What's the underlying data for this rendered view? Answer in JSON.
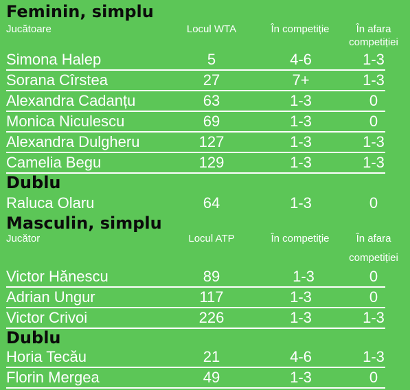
{
  "sections": {
    "women_single": "Feminin, simplu",
    "women_double": "Dublu",
    "men_single": "Masculin, simplu",
    "men_double": "Dublu"
  },
  "headers_women": {
    "player": "Jucătoare",
    "rank": "Locul WTA",
    "in_competition": "În competiție",
    "out_competition_1": "În afara",
    "out_competition_2": "competiției"
  },
  "headers_men": {
    "player": "Jucător",
    "rank": "Locul ATP",
    "in_competition": "În competiție",
    "out_competition_1": "În afara",
    "out_competition_2": "competiției"
  },
  "women_single_rows": [
    {
      "name": "Simona Halep",
      "rank": "5",
      "in": "4-6",
      "out": "1-3"
    },
    {
      "name": "Sorana Cîrstea",
      "rank": "27",
      "in": "7+",
      "out": "1-3"
    },
    {
      "name": "Alexandra Cadanțu",
      "rank": "63",
      "in": "1-3",
      "out": "0"
    },
    {
      "name": "Monica Niculescu",
      "rank": "69",
      "in": "1-3",
      "out": "0"
    },
    {
      "name": "Alexandra Dulgheru",
      "rank": "127",
      "in": "1-3",
      "out": "1-3"
    },
    {
      "name": "Camelia Begu",
      "rank": "129",
      "in": "1-3",
      "out": "1-3"
    }
  ],
  "women_double_rows": [
    {
      "name": "Raluca Olaru",
      "rank": "64",
      "in": "1-3",
      "out": "0"
    }
  ],
  "men_single_rows": [
    {
      "name": "Victor Hănescu",
      "rank": "89",
      "in": "1-3",
      "out": "0"
    },
    {
      "name": "Adrian Ungur",
      "rank": "117",
      "in": "1-3",
      "out": "0"
    },
    {
      "name": "Victor Crivoi",
      "rank": "226",
      "in": "1-3",
      "out": "1-3"
    }
  ],
  "men_double_rows": [
    {
      "name": "Horia Tecău",
      "rank": "21",
      "in": "4-6",
      "out": "1-3"
    },
    {
      "name": "Florin Mergea",
      "rank": "49",
      "in": "1-3",
      "out": "0"
    }
  ]
}
